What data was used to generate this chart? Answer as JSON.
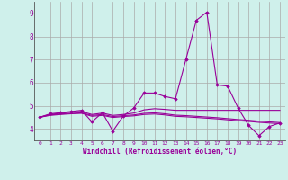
{
  "xlabel": "Windchill (Refroidissement éolien,°C)",
  "bg_color": "#cff0eb",
  "line_color": "#990099",
  "grid_color": "#aaaaaa",
  "xlim": [
    -0.5,
    23.5
  ],
  "ylim": [
    3.5,
    9.5
  ],
  "yticks": [
    4,
    5,
    6,
    7,
    8,
    9
  ],
  "xticks": [
    0,
    1,
    2,
    3,
    4,
    5,
    6,
    7,
    8,
    9,
    10,
    11,
    12,
    13,
    14,
    15,
    16,
    17,
    18,
    19,
    20,
    21,
    22,
    23
  ],
  "series": [
    [
      4.5,
      4.65,
      4.7,
      4.75,
      4.8,
      4.3,
      4.7,
      3.9,
      4.55,
      4.9,
      5.55,
      5.55,
      5.4,
      5.3,
      7.0,
      8.7,
      9.05,
      5.9,
      5.85,
      4.9,
      4.15,
      3.7,
      4.1,
      4.25
    ],
    [
      4.5,
      4.62,
      4.67,
      4.72,
      4.75,
      4.62,
      4.68,
      4.58,
      4.62,
      4.68,
      4.82,
      4.87,
      4.84,
      4.8,
      4.8,
      4.8,
      4.8,
      4.8,
      4.8,
      4.8,
      4.8,
      4.8,
      4.8,
      4.8
    ],
    [
      4.5,
      4.6,
      4.64,
      4.67,
      4.69,
      4.58,
      4.62,
      4.53,
      4.57,
      4.6,
      4.67,
      4.69,
      4.65,
      4.59,
      4.57,
      4.54,
      4.51,
      4.48,
      4.44,
      4.4,
      4.37,
      4.33,
      4.3,
      4.27
    ],
    [
      4.5,
      4.58,
      4.62,
      4.65,
      4.67,
      4.54,
      4.58,
      4.49,
      4.53,
      4.56,
      4.62,
      4.64,
      4.6,
      4.54,
      4.52,
      4.49,
      4.46,
      4.43,
      4.39,
      4.35,
      4.32,
      4.28,
      4.25,
      4.22
    ]
  ]
}
